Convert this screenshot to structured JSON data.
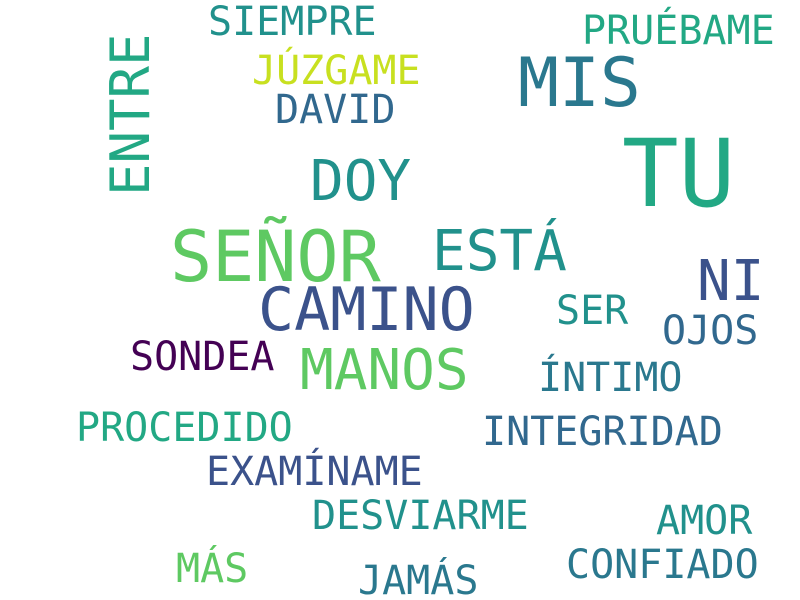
{
  "words": [
    {
      "text": "TU",
      "color": "#22a884"
    },
    {
      "text": "MIS",
      "color": "#2a788e"
    },
    {
      "text": "SEÑOR",
      "color": "#5ec962"
    },
    {
      "text": "CAMINO",
      "color": "#3b528b"
    },
    {
      "text": "ESTÁ",
      "color": "#21918c"
    },
    {
      "text": "MANOS",
      "color": "#5ec962"
    },
    {
      "text": "NI",
      "color": "#3b528b"
    },
    {
      "text": "DOY",
      "color": "#21918c"
    },
    {
      "text": "ENTRE",
      "color": "#22a884"
    },
    {
      "text": "SIEMPRE",
      "color": "#21918c"
    },
    {
      "text": "PRUÉBAME",
      "color": "#22a884"
    },
    {
      "text": "JÚZGAME",
      "color": "#c8e020"
    },
    {
      "text": "DAVID",
      "color": "#31688e"
    },
    {
      "text": "SER",
      "color": "#21918c"
    },
    {
      "text": "OJOS",
      "color": "#31688e"
    },
    {
      "text": "SONDEA",
      "color": "#440154"
    },
    {
      "text": "ÍNTIMO",
      "color": "#2a788e"
    },
    {
      "text": "PROCEDIDO",
      "color": "#22a884"
    },
    {
      "text": "INTEGRIDAD",
      "color": "#31688e"
    },
    {
      "text": "EXAMÍNAME",
      "color": "#3b528b"
    },
    {
      "text": "DESVIARME",
      "color": "#21918c"
    },
    {
      "text": "AMOR",
      "color": "#21918c"
    },
    {
      "text": "MÁS",
      "color": "#5ec962"
    },
    {
      "text": "CONFIADO",
      "color": "#2a788e"
    },
    {
      "text": "JAMÁS",
      "color": "#2a788e"
    }
  ]
}
